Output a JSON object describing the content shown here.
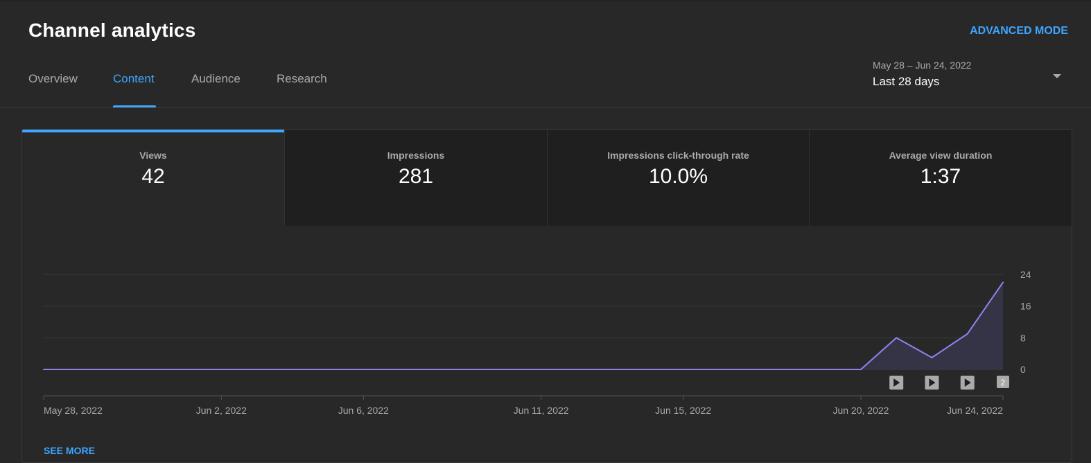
{
  "header": {
    "title": "Channel analytics",
    "advanced_mode": "ADVANCED MODE"
  },
  "tabs": [
    {
      "label": "Overview",
      "active": false
    },
    {
      "label": "Content",
      "active": true
    },
    {
      "label": "Audience",
      "active": false
    },
    {
      "label": "Research",
      "active": false
    }
  ],
  "date_picker": {
    "range": "May 28 – Jun 24, 2022",
    "label": "Last 28 days"
  },
  "metrics": [
    {
      "label": "Views",
      "value": "42",
      "active": true
    },
    {
      "label": "Impressions",
      "value": "281",
      "active": false
    },
    {
      "label": "Impressions click-through rate",
      "value": "10.0%",
      "active": false
    },
    {
      "label": "Average view duration",
      "value": "1:37",
      "active": false
    }
  ],
  "colors": {
    "accent": "#3ea6ff",
    "line": "#8e84f0",
    "area": "#3a3850"
  },
  "chart_data": {
    "type": "area",
    "x": [
      "May 28, 2022",
      "May 29, 2022",
      "May 30, 2022",
      "May 31, 2022",
      "Jun 1, 2022",
      "Jun 2, 2022",
      "Jun 3, 2022",
      "Jun 4, 2022",
      "Jun 5, 2022",
      "Jun 6, 2022",
      "Jun 7, 2022",
      "Jun 8, 2022",
      "Jun 9, 2022",
      "Jun 10, 2022",
      "Jun 11, 2022",
      "Jun 12, 2022",
      "Jun 13, 2022",
      "Jun 14, 2022",
      "Jun 15, 2022",
      "Jun 16, 2022",
      "Jun 17, 2022",
      "Jun 18, 2022",
      "Jun 19, 2022",
      "Jun 20, 2022",
      "Jun 21, 2022",
      "Jun 22, 2022",
      "Jun 23, 2022",
      "Jun 24, 2022"
    ],
    "series": [
      {
        "values": [
          0,
          0,
          0,
          0,
          0,
          0,
          0,
          0,
          0,
          0,
          0,
          0,
          0,
          0,
          0,
          0,
          0,
          0,
          0,
          0,
          0,
          0,
          0,
          0,
          8,
          3,
          9,
          22
        ]
      }
    ],
    "x_tick_labels": [
      "May 28, 2022",
      "Jun 2, 2022",
      "Jun 6, 2022",
      "Jun 11, 2022",
      "Jun 15, 2022",
      "Jun 20, 2022",
      "Jun 24, 2022"
    ],
    "y_ticks": [
      0,
      8,
      16,
      24
    ],
    "ylim": [
      0,
      24
    ],
    "y_axis_position": "right",
    "grid": true,
    "video_markers": [
      {
        "date": "Jun 21, 2022",
        "label": "play-icon"
      },
      {
        "date": "Jun 22, 2022",
        "label": "play-icon"
      },
      {
        "date": "Jun 23, 2022",
        "label": "play-icon"
      },
      {
        "date": "Jun 24, 2022",
        "label": "2"
      }
    ]
  },
  "footer": {
    "see_more": "SEE MORE"
  }
}
